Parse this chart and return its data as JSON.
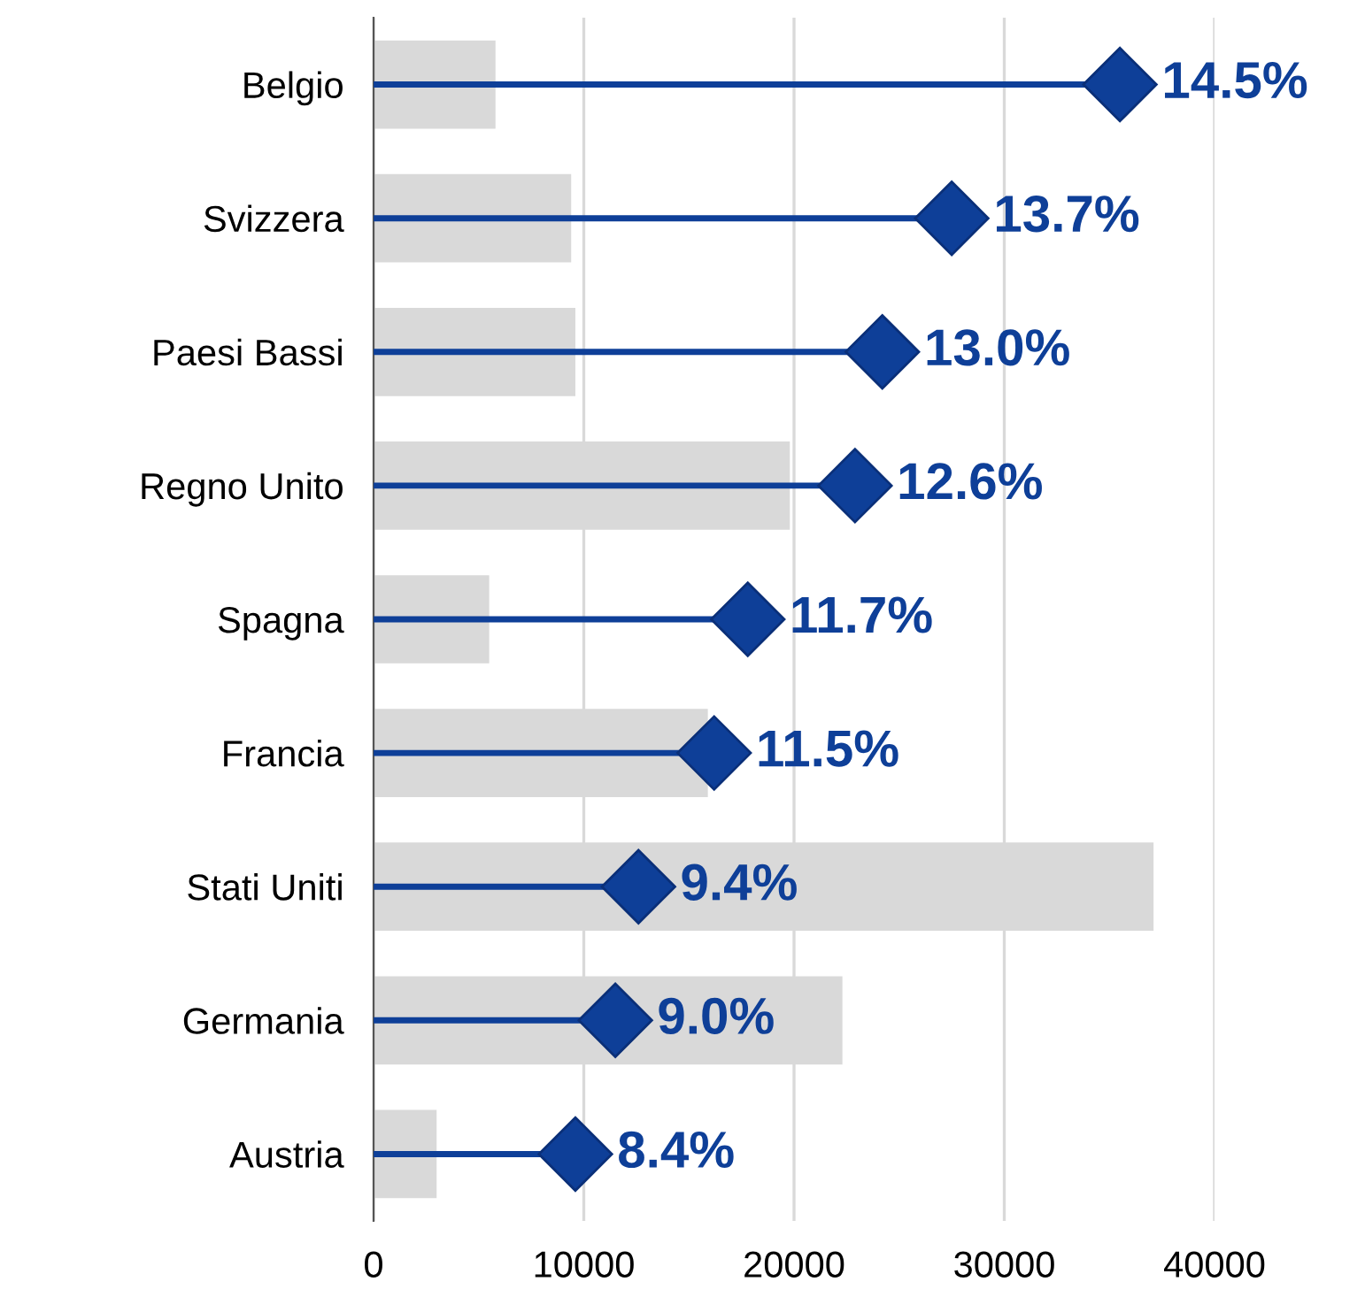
{
  "chart_data": {
    "type": "bar",
    "orientation": "horizontal",
    "categories": [
      "Belgio",
      "Svizzera",
      "Paesi Bassi",
      "Regno Unito",
      "Spagna",
      "Francia",
      "Stati Uniti",
      "Germania",
      "Austria"
    ],
    "series": [
      {
        "color": "#d9d9d9",
        "values": [
          5800,
          9400,
          9600,
          19800,
          5500,
          15900,
          37100,
          22300,
          3000
        ]
      },
      {
        "type": "lollipop",
        "color": "#0e3f98",
        "marker": "diamond",
        "values": [
          35500,
          27500,
          24200,
          22900,
          17800,
          16200,
          12600,
          11500,
          9600
        ]
      }
    ],
    "annotations": [
      {
        "text": "14.5%",
        "x": 35500,
        "y": "Belgio"
      },
      {
        "text": "13.7%",
        "x": 27500,
        "y": "Svizzera"
      },
      {
        "text": "13.0%",
        "x": 24200,
        "y": "Paesi Bassi"
      },
      {
        "text": "12.6%",
        "x": 22900,
        "y": "Regno Unito"
      },
      {
        "text": "11.7%",
        "x": 17800,
        "y": "Spagna"
      },
      {
        "text": "11.5%",
        "x": 16200,
        "y": "Francia"
      },
      {
        "text": "9.4%",
        "x": 12600,
        "y": "Stati Uniti"
      },
      {
        "text": "9.0%",
        "x": 11500,
        "y": "Germania"
      },
      {
        "text": "8.4%",
        "x": 9600,
        "y": "Austria"
      }
    ],
    "xlim": [
      0,
      40000
    ],
    "xticks": [
      0,
      10000,
      20000,
      30000,
      40000
    ],
    "grid": "x"
  }
}
